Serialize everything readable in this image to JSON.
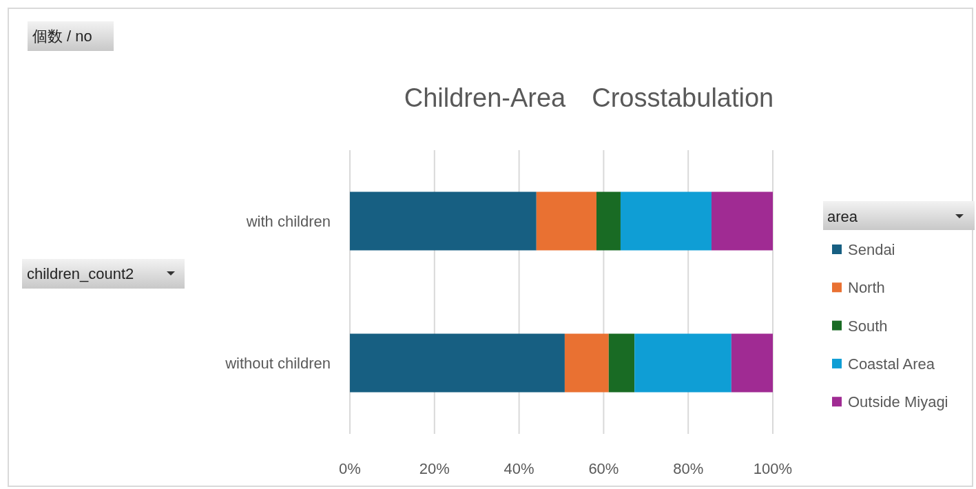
{
  "chart_data": {
    "type": "bar",
    "orientation": "horizontal",
    "stacked": true,
    "title": "Children-Area　Crosstabulation",
    "legend_title": "area",
    "annotations": [
      "個数 / no",
      "children_count2"
    ],
    "categories": [
      "with children",
      "without children"
    ],
    "series": [
      {
        "name": "Sendai",
        "color": "#175f82",
        "values": [
          44.1,
          50.8
        ]
      },
      {
        "name": "North",
        "color": "#e97132",
        "values": [
          14.2,
          10.4
        ]
      },
      {
        "name": "South",
        "color": "#196b24",
        "values": [
          5.7,
          6.1
        ]
      },
      {
        "name": "Coastal Area",
        "color": "#0f9ed5",
        "values": [
          21.5,
          22.9
        ]
      },
      {
        "name": "Outside Miyagi",
        "color": "#a02b93",
        "values": [
          14.5,
          9.8
        ]
      }
    ],
    "xlim": [
      0,
      100
    ],
    "xticks": [
      {
        "value": 0,
        "label": "0%"
      },
      {
        "value": 20,
        "label": "20%"
      },
      {
        "value": 40,
        "label": "40%"
      },
      {
        "value": 60,
        "label": "60%"
      },
      {
        "value": 80,
        "label": "80%"
      },
      {
        "value": 100,
        "label": "100%"
      }
    ],
    "grid": "x",
    "legend": "right"
  }
}
